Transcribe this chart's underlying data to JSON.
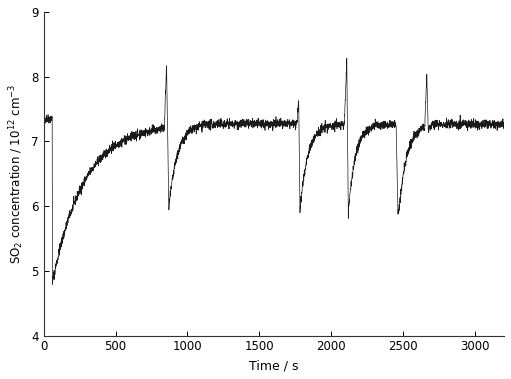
{
  "xlabel": "Time / s",
  "ylabel": "SO$_2$ concentration / 10$^{12}$ cm$^{-3}$",
  "xlim": [
    0,
    3200
  ],
  "ylim": [
    4,
    9
  ],
  "xticks": [
    0,
    500,
    1000,
    1500,
    2000,
    2500,
    3000
  ],
  "yticks": [
    4,
    5,
    6,
    7,
    8,
    9
  ],
  "line_color": "#1a1a1a",
  "line_width": 0.5,
  "background_color": "#ffffff",
  "noise_amplitude": 0.035,
  "flat_noise": 0.025,
  "v_steady": 7.27,
  "v_init_flat": 7.35,
  "seg1": {
    "t_flat_end": 60,
    "t_drop": 62,
    "v_min": 4.83,
    "tau": 220,
    "t_end": 840
  },
  "seg2": {
    "t_start": 840,
    "t_peak": 855,
    "v_peak": 8.18,
    "t_valley": 870,
    "v_valley": 5.95,
    "tau": 60,
    "t_end": 1760
  },
  "seg3": {
    "t_start": 1760,
    "t_peak": 1773,
    "v_peak": 7.62,
    "t_valley": 1782,
    "v_valley": 5.95,
    "tau": 55,
    "t_end": 2090
  },
  "seg4": {
    "t_start": 2090,
    "t_peak": 2107,
    "v_peak": 8.26,
    "t_valley": 2118,
    "v_valley": 5.9,
    "tau": 50,
    "t_end": 2450
  },
  "seg5": {
    "t_start": 2450,
    "t_peak": 2463,
    "v_peak": 5.92,
    "t_valley": 2470,
    "v_valley": 5.92,
    "tau": 55,
    "t_end": 2650
  },
  "seg6": {
    "t_start": 2650,
    "t_peak": 2663,
    "v_peak": 8.07,
    "t_valley": 2672,
    "v_valley": 7.2,
    "tau": 30,
    "t_end": 3200
  }
}
